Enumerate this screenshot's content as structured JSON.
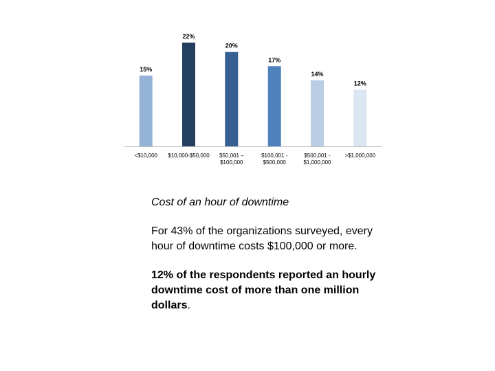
{
  "chart_data": {
    "type": "bar",
    "categories": [
      [
        "<$10,000"
      ],
      [
        "$10,000-$50,000"
      ],
      [
        "$50,001 –",
        "$100,000"
      ],
      [
        "$100,001 -",
        "$500,000"
      ],
      [
        "$500,001 -",
        "$1,000,000"
      ],
      [
        ">$1,000,000"
      ]
    ],
    "values": [
      15,
      22,
      20,
      17,
      14,
      12
    ],
    "value_labels": [
      "15%",
      "22%",
      "20%",
      "17%",
      "14%",
      "12%"
    ],
    "colors": [
      "#95b3d7",
      "#243f60",
      "#376092",
      "#4f81bd",
      "#b9cde5",
      "#dce6f2"
    ],
    "ylim": [
      0,
      22
    ],
    "title": "",
    "xlabel": "",
    "ylabel": "",
    "grid": false,
    "legend": "none"
  },
  "caption": {
    "title": "Cost of an hour of downtime",
    "paragraph": "For 43% of the organizations surveyed, every hour of downtime costs $100,000 or more.",
    "emphasis": "12% of the respondents reported an hourly downtime cost of more than one million dollars",
    "emphasis_tail": "."
  }
}
